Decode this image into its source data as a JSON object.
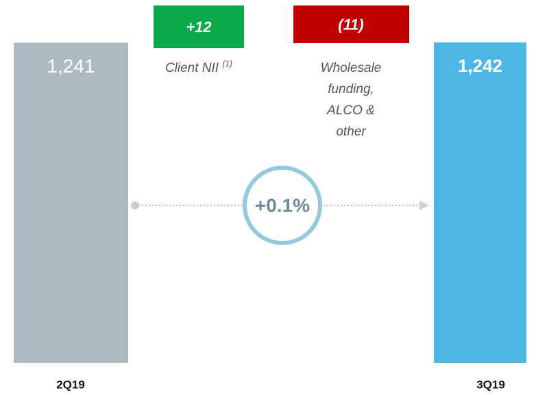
{
  "chart_data": {
    "type": "waterfall",
    "categories": [
      "2Q19",
      "3Q19"
    ],
    "values": [
      1241,
      1242
    ],
    "value_labels": [
      "1,241",
      "1,242"
    ],
    "colors": [
      "#adbbc1",
      "#4db8e5"
    ],
    "steps": [
      {
        "name": "Client NII",
        "note": "(1)",
        "value": 12,
        "label": "+12",
        "color": "#0aaa4a"
      },
      {
        "name": [
          "Wholesale",
          "funding,",
          "ALCO &",
          "other"
        ],
        "value": -11,
        "label": "(11)",
        "color": "#c00000"
      }
    ],
    "change": {
      "value": 0.1,
      "label": "+0.1%"
    }
  }
}
